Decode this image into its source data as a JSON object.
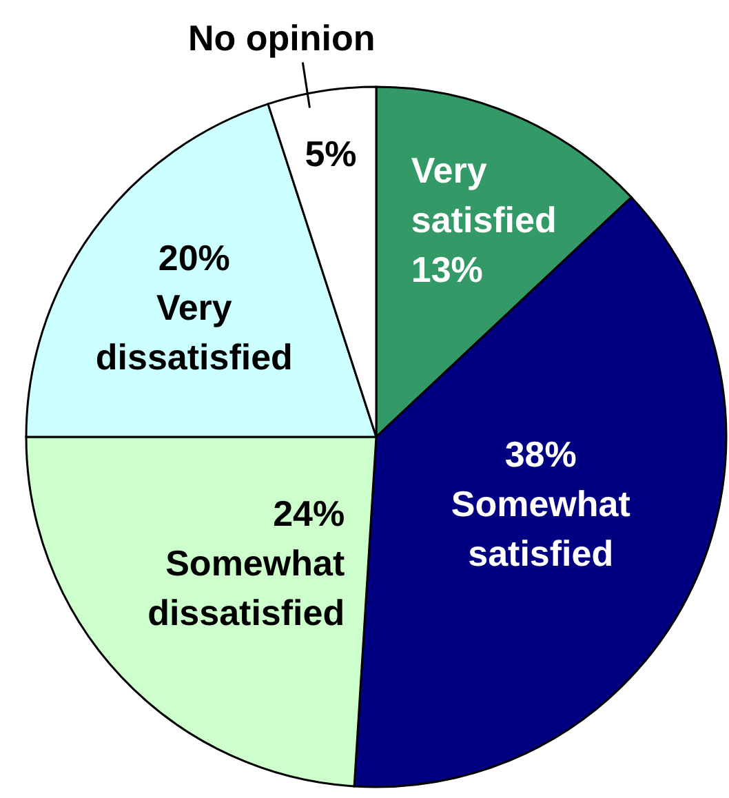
{
  "chart_data": {
    "type": "pie",
    "categories": [
      "Very satisfied",
      "Somewhat satisfied",
      "Somewhat dissatisfied",
      "Very dissatisfied",
      "No opinion"
    ],
    "values": [
      13,
      38,
      24,
      20,
      5
    ],
    "colors": [
      "#339966",
      "#000080",
      "#ccffcc",
      "#ccffff",
      "#ffffff"
    ],
    "value_labels": [
      "13%",
      "38%",
      "24%",
      "20%",
      "5%"
    ],
    "legend": false
  }
}
